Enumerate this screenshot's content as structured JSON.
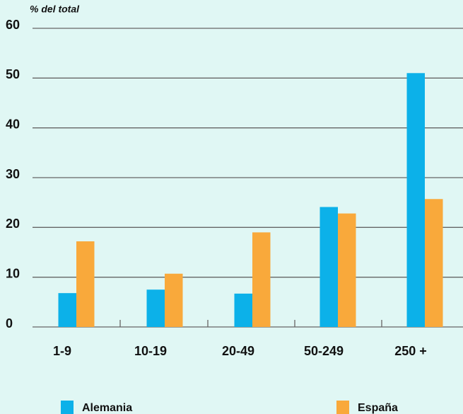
{
  "chart_data": {
    "type": "bar",
    "y_axis_label": "% del total",
    "categories": [
      "1-9",
      "10-19",
      "20-49",
      "50-249",
      "250 +"
    ],
    "series": [
      {
        "name": "Alemania",
        "color": "#0cb1e9",
        "values": [
          6.8,
          7.5,
          6.7,
          24.1,
          51.0
        ]
      },
      {
        "name": "España",
        "color": "#f9a93b",
        "values": [
          17.2,
          10.7,
          19.0,
          22.8,
          25.7
        ]
      }
    ],
    "ylim": [
      0,
      60
    ],
    "yticks": [
      0,
      10,
      20,
      30,
      40,
      50,
      60
    ],
    "grid": true
  }
}
